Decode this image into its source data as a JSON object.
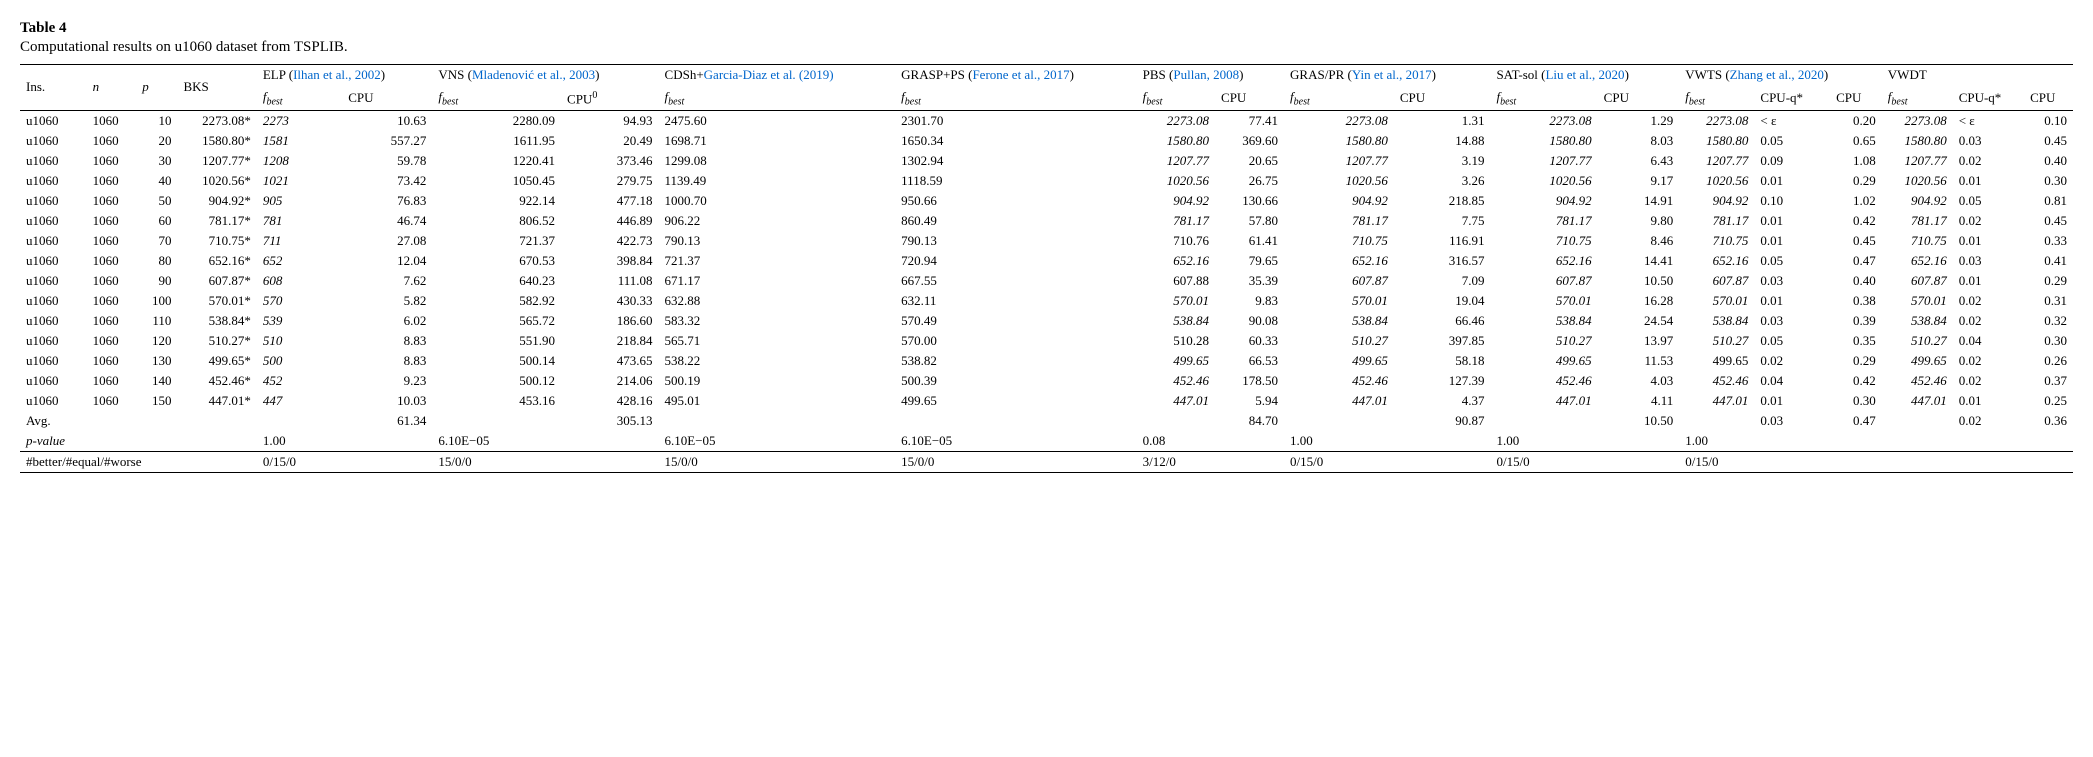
{
  "title": "Table 4",
  "caption": "Computational results on u1060 dataset from TSPLIB.",
  "headers": {
    "ins": "Ins.",
    "n": "n",
    "p": "p",
    "bks": "BKS",
    "fbest": "f",
    "fbest_sub": "best",
    "cpu": "CPU",
    "cpu0": "CPU",
    "cpu0_sup": "0",
    "cpuq": "CPU-q*",
    "methods": [
      {
        "name": "ELP",
        "ref": "Ilhan et al., 2002",
        "cols": [
          "fbest",
          "cpu"
        ]
      },
      {
        "name": "VNS",
        "ref": "Mladenović et al., 2003",
        "cols": [
          "fbest",
          "cpu0"
        ]
      },
      {
        "name": "CDSh+",
        "ref": "Garcia-Diaz et al. (2019)",
        "cols": [
          "fbest"
        ]
      },
      {
        "name": "GRASP+PS",
        "ref": "Ferone et al., 2017",
        "cols": [
          "fbest"
        ]
      },
      {
        "name": "PBS",
        "ref": "Pullan, 2008",
        "cols": [
          "fbest",
          "cpu"
        ]
      },
      {
        "name": "GRAS/PR",
        "ref": "Yin et al., 2017",
        "cols": [
          "fbest",
          "cpu"
        ]
      },
      {
        "name": "SAT-sol",
        "ref": "Liu et al., 2020",
        "cols": [
          "fbest",
          "cpu"
        ]
      },
      {
        "name": "VWTS",
        "ref": "Zhang et al., 2020",
        "cols": [
          "fbest",
          "cpuq",
          "cpu"
        ]
      },
      {
        "name": "VWDT",
        "ref": "",
        "cols": [
          "fbest",
          "cpuq",
          "cpu"
        ]
      }
    ]
  },
  "rows": [
    {
      "ins": "u1060",
      "n": "1060",
      "p": "10",
      "bks": "2273.08*",
      "elp_f": "2273",
      "elp_c": "10.63",
      "vns_f": "2280.09",
      "vns_c": "94.93",
      "cdsh_f": "2475.60",
      "grasp_f": "2301.70",
      "pbs_f": "2273.08",
      "pbs_c": "77.41",
      "gras_f": "2273.08",
      "gras_c": "1.31",
      "sat_f": "2273.08",
      "sat_c": "1.29",
      "vwts_f": "2273.08",
      "vwts_q": "< ε",
      "vwts_c": "0.20",
      "vwdt_f": "2273.08",
      "vwdt_q": "< ε",
      "vwdt_c": "0.10",
      "pbs_it": true,
      "gras_it": true,
      "sat_it": true,
      "vwts_it": true,
      "vwdt_it": true
    },
    {
      "ins": "u1060",
      "n": "1060",
      "p": "20",
      "bks": "1580.80*",
      "elp_f": "1581",
      "elp_c": "557.27",
      "vns_f": "1611.95",
      "vns_c": "20.49",
      "cdsh_f": "1698.71",
      "grasp_f": "1650.34",
      "pbs_f": "1580.80",
      "pbs_c": "369.60",
      "gras_f": "1580.80",
      "gras_c": "14.88",
      "sat_f": "1580.80",
      "sat_c": "8.03",
      "vwts_f": "1580.80",
      "vwts_q": "0.05",
      "vwts_c": "0.65",
      "vwdt_f": "1580.80",
      "vwdt_q": "0.03",
      "vwdt_c": "0.45",
      "pbs_it": true,
      "gras_it": true,
      "sat_it": true,
      "vwts_it": true,
      "vwdt_it": true
    },
    {
      "ins": "u1060",
      "n": "1060",
      "p": "30",
      "bks": "1207.77*",
      "elp_f": "1208",
      "elp_c": "59.78",
      "vns_f": "1220.41",
      "vns_c": "373.46",
      "cdsh_f": "1299.08",
      "grasp_f": "1302.94",
      "pbs_f": "1207.77",
      "pbs_c": "20.65",
      "gras_f": "1207.77",
      "gras_c": "3.19",
      "sat_f": "1207.77",
      "sat_c": "6.43",
      "vwts_f": "1207.77",
      "vwts_q": "0.09",
      "vwts_c": "1.08",
      "vwdt_f": "1207.77",
      "vwdt_q": "0.02",
      "vwdt_c": "0.40",
      "pbs_it": true,
      "gras_it": true,
      "sat_it": true,
      "vwts_it": true,
      "vwdt_it": true
    },
    {
      "ins": "u1060",
      "n": "1060",
      "p": "40",
      "bks": "1020.56*",
      "elp_f": "1021",
      "elp_c": "73.42",
      "vns_f": "1050.45",
      "vns_c": "279.75",
      "cdsh_f": "1139.49",
      "grasp_f": "1118.59",
      "pbs_f": "1020.56",
      "pbs_c": "26.75",
      "gras_f": "1020.56",
      "gras_c": "3.26",
      "sat_f": "1020.56",
      "sat_c": "9.17",
      "vwts_f": "1020.56",
      "vwts_q": "0.01",
      "vwts_c": "0.29",
      "vwdt_f": "1020.56",
      "vwdt_q": "0.01",
      "vwdt_c": "0.30",
      "pbs_it": true,
      "gras_it": true,
      "sat_it": true,
      "vwts_it": true,
      "vwdt_it": true
    },
    {
      "ins": "u1060",
      "n": "1060",
      "p": "50",
      "bks": "904.92*",
      "elp_f": "905",
      "elp_c": "76.83",
      "vns_f": "922.14",
      "vns_c": "477.18",
      "cdsh_f": "1000.70",
      "grasp_f": "950.66",
      "pbs_f": "904.92",
      "pbs_c": "130.66",
      "gras_f": "904.92",
      "gras_c": "218.85",
      "sat_f": "904.92",
      "sat_c": "14.91",
      "vwts_f": "904.92",
      "vwts_q": "0.10",
      "vwts_c": "1.02",
      "vwdt_f": "904.92",
      "vwdt_q": "0.05",
      "vwdt_c": "0.81",
      "pbs_it": true,
      "gras_it": true,
      "sat_it": true,
      "vwts_it": true,
      "vwdt_it": true
    },
    {
      "ins": "u1060",
      "n": "1060",
      "p": "60",
      "bks": "781.17*",
      "elp_f": "781",
      "elp_c": "46.74",
      "vns_f": "806.52",
      "vns_c": "446.89",
      "cdsh_f": "906.22",
      "grasp_f": "860.49",
      "pbs_f": "781.17",
      "pbs_c": "57.80",
      "gras_f": "781.17",
      "gras_c": "7.75",
      "sat_f": "781.17",
      "sat_c": "9.80",
      "vwts_f": "781.17",
      "vwts_q": "0.01",
      "vwts_c": "0.42",
      "vwdt_f": "781.17",
      "vwdt_q": "0.02",
      "vwdt_c": "0.45",
      "pbs_it": true,
      "gras_it": true,
      "sat_it": true,
      "vwts_it": true,
      "vwdt_it": true
    },
    {
      "ins": "u1060",
      "n": "1060",
      "p": "70",
      "bks": "710.75*",
      "elp_f": "711",
      "elp_c": "27.08",
      "vns_f": "721.37",
      "vns_c": "422.73",
      "cdsh_f": "790.13",
      "grasp_f": "790.13",
      "pbs_f": "710.76",
      "pbs_c": "61.41",
      "gras_f": "710.75",
      "gras_c": "116.91",
      "sat_f": "710.75",
      "sat_c": "8.46",
      "vwts_f": "710.75",
      "vwts_q": "0.01",
      "vwts_c": "0.45",
      "vwdt_f": "710.75",
      "vwdt_q": "0.01",
      "vwdt_c": "0.33",
      "pbs_it": false,
      "gras_it": true,
      "sat_it": true,
      "vwts_it": true,
      "vwdt_it": true
    },
    {
      "ins": "u1060",
      "n": "1060",
      "p": "80",
      "bks": "652.16*",
      "elp_f": "652",
      "elp_c": "12.04",
      "vns_f": "670.53",
      "vns_c": "398.84",
      "cdsh_f": "721.37",
      "grasp_f": "720.94",
      "pbs_f": "652.16",
      "pbs_c": "79.65",
      "gras_f": "652.16",
      "gras_c": "316.57",
      "sat_f": "652.16",
      "sat_c": "14.41",
      "vwts_f": "652.16",
      "vwts_q": "0.05",
      "vwts_c": "0.47",
      "vwdt_f": "652.16",
      "vwdt_q": "0.03",
      "vwdt_c": "0.41",
      "pbs_it": true,
      "gras_it": true,
      "sat_it": true,
      "vwts_it": true,
      "vwdt_it": true
    },
    {
      "ins": "u1060",
      "n": "1060",
      "p": "90",
      "bks": "607.87*",
      "elp_f": "608",
      "elp_c": "7.62",
      "vns_f": "640.23",
      "vns_c": "111.08",
      "cdsh_f": "671.17",
      "grasp_f": "667.55",
      "pbs_f": "607.88",
      "pbs_c": "35.39",
      "gras_f": "607.87",
      "gras_c": "7.09",
      "sat_f": "607.87",
      "sat_c": "10.50",
      "vwts_f": "607.87",
      "vwts_q": "0.03",
      "vwts_c": "0.40",
      "vwdt_f": "607.87",
      "vwdt_q": "0.01",
      "vwdt_c": "0.29",
      "pbs_it": false,
      "gras_it": true,
      "sat_it": true,
      "vwts_it": true,
      "vwdt_it": true
    },
    {
      "ins": "u1060",
      "n": "1060",
      "p": "100",
      "bks": "570.01*",
      "elp_f": "570",
      "elp_c": "5.82",
      "vns_f": "582.92",
      "vns_c": "430.33",
      "cdsh_f": "632.88",
      "grasp_f": "632.11",
      "pbs_f": "570.01",
      "pbs_c": "9.83",
      "gras_f": "570.01",
      "gras_c": "19.04",
      "sat_f": "570.01",
      "sat_c": "16.28",
      "vwts_f": "570.01",
      "vwts_q": "0.01",
      "vwts_c": "0.38",
      "vwdt_f": "570.01",
      "vwdt_q": "0.02",
      "vwdt_c": "0.31",
      "pbs_it": true,
      "gras_it": true,
      "sat_it": true,
      "vwts_it": true,
      "vwdt_it": true
    },
    {
      "ins": "u1060",
      "n": "1060",
      "p": "110",
      "bks": "538.84*",
      "elp_f": "539",
      "elp_c": "6.02",
      "vns_f": "565.72",
      "vns_c": "186.60",
      "cdsh_f": "583.32",
      "grasp_f": "570.49",
      "pbs_f": "538.84",
      "pbs_c": "90.08",
      "gras_f": "538.84",
      "gras_c": "66.46",
      "sat_f": "538.84",
      "sat_c": "24.54",
      "vwts_f": "538.84",
      "vwts_q": "0.03",
      "vwts_c": "0.39",
      "vwdt_f": "538.84",
      "vwdt_q": "0.02",
      "vwdt_c": "0.32",
      "pbs_it": true,
      "gras_it": true,
      "sat_it": true,
      "vwts_it": true,
      "vwdt_it": true
    },
    {
      "ins": "u1060",
      "n": "1060",
      "p": "120",
      "bks": "510.27*",
      "elp_f": "510",
      "elp_c": "8.83",
      "vns_f": "551.90",
      "vns_c": "218.84",
      "cdsh_f": "565.71",
      "grasp_f": "570.00",
      "pbs_f": "510.28",
      "pbs_c": "60.33",
      "gras_f": "510.27",
      "gras_c": "397.85",
      "sat_f": "510.27",
      "sat_c": "13.97",
      "vwts_f": "510.27",
      "vwts_q": "0.05",
      "vwts_c": "0.35",
      "vwdt_f": "510.27",
      "vwdt_q": "0.04",
      "vwdt_c": "0.30",
      "pbs_it": false,
      "gras_it": true,
      "sat_it": true,
      "vwts_it": true,
      "vwdt_it": true
    },
    {
      "ins": "u1060",
      "n": "1060",
      "p": "130",
      "bks": "499.65*",
      "elp_f": "500",
      "elp_c": "8.83",
      "vns_f": "500.14",
      "vns_c": "473.65",
      "cdsh_f": "538.22",
      "grasp_f": "538.82",
      "pbs_f": "499.65",
      "pbs_c": "66.53",
      "gras_f": "499.65",
      "gras_c": "58.18",
      "sat_f": "499.65",
      "sat_c": "11.53",
      "vwts_f": "499.65",
      "vwts_q": "0.02",
      "vwts_c": "0.29",
      "vwdt_f": "499.65",
      "vwdt_q": "0.02",
      "vwdt_c": "0.26",
      "pbs_it": true,
      "gras_it": true,
      "sat_it": true,
      "vwts_it": false,
      "vwdt_it": true
    },
    {
      "ins": "u1060",
      "n": "1060",
      "p": "140",
      "bks": "452.46*",
      "elp_f": "452",
      "elp_c": "9.23",
      "vns_f": "500.12",
      "vns_c": "214.06",
      "cdsh_f": "500.19",
      "grasp_f": "500.39",
      "pbs_f": "452.46",
      "pbs_c": "178.50",
      "gras_f": "452.46",
      "gras_c": "127.39",
      "sat_f": "452.46",
      "sat_c": "4.03",
      "vwts_f": "452.46",
      "vwts_q": "0.04",
      "vwts_c": "0.42",
      "vwdt_f": "452.46",
      "vwdt_q": "0.02",
      "vwdt_c": "0.37",
      "pbs_it": true,
      "gras_it": true,
      "sat_it": true,
      "vwts_it": true,
      "vwdt_it": true
    },
    {
      "ins": "u1060",
      "n": "1060",
      "p": "150",
      "bks": "447.01*",
      "elp_f": "447",
      "elp_c": "10.03",
      "vns_f": "453.16",
      "vns_c": "428.16",
      "cdsh_f": "495.01",
      "grasp_f": "499.65",
      "pbs_f": "447.01",
      "pbs_c": "5.94",
      "gras_f": "447.01",
      "gras_c": "4.37",
      "sat_f": "447.01",
      "sat_c": "4.11",
      "vwts_f": "447.01",
      "vwts_q": "0.01",
      "vwts_c": "0.30",
      "vwdt_f": "447.01",
      "vwdt_q": "0.01",
      "vwdt_c": "0.25",
      "pbs_it": true,
      "gras_it": true,
      "sat_it": true,
      "vwts_it": true,
      "vwdt_it": true
    }
  ],
  "avg": {
    "label": "Avg.",
    "elp_c": "61.34",
    "vns_c": "305.13",
    "pbs_c": "84.70",
    "gras_c": "90.87",
    "sat_c": "10.50",
    "vwts_q": "0.03",
    "vwts_c": "0.47",
    "vwdt_q": "0.02",
    "vwdt_c": "0.36"
  },
  "pvalue": {
    "label": "p-value",
    "elp": "1.00",
    "vns": "6.10E−05",
    "cdsh": "6.10E−05",
    "grasp": "6.10E−05",
    "pbs": "0.08",
    "gras": "1.00",
    "sat": "1.00",
    "vwts": "1.00"
  },
  "summary": {
    "label": "#better/#equal/#worse",
    "elp": "0/15/0",
    "vns": "15/0/0",
    "cdsh": "15/0/0",
    "grasp": "15/0/0",
    "pbs": "3/12/0",
    "gras": "0/15/0",
    "sat": "0/15/0",
    "vwts": "0/15/0"
  }
}
